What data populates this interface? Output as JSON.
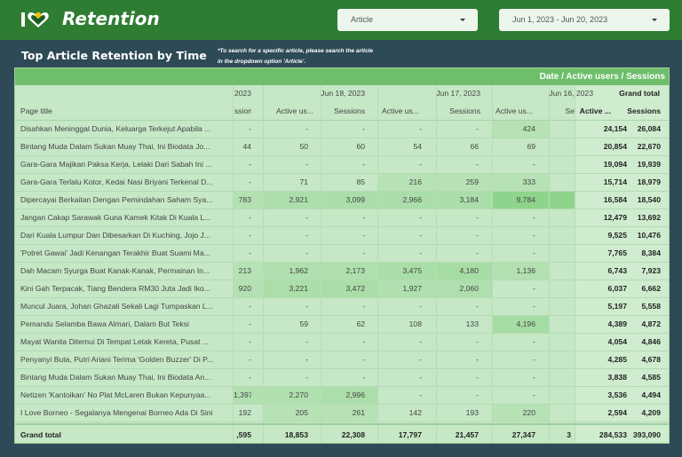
{
  "header": {
    "title": "Retention",
    "logo_icon": "i-love-borneo-logo-icon",
    "article_dropdown": "Article",
    "date_range": "Jun 1, 2023 - Jun 20, 2023"
  },
  "section": {
    "title": "Top Article Retention by Time",
    "note": "*To search for a specific article, please search the article in the dropdown option 'Article'."
  },
  "table": {
    "dimension_label": "Date / Active users / Sessions",
    "page_title_header": "Page title",
    "date_headers": [
      {
        "label": "2023"
      },
      {
        "label": "Jun 18, 2023"
      },
      {
        "label": "Jun 17, 2023"
      },
      {
        "label": "Jun 16, 2023"
      }
    ],
    "grand_total_header": "Grand total",
    "metric_headers": [
      "ssions",
      "Active us...",
      "Sessions",
      "Active us...",
      "Sessions",
      "Active us...",
      "Se"
    ],
    "grand_total_metric_headers": [
      "Active ...",
      "Sessions"
    ],
    "rows": [
      {
        "title": "Disahkan Meninggal Dunia, Keluarga Terkejut Apabila ...",
        "values": [
          "-",
          "-",
          "-",
          "-",
          "-",
          "424",
          ""
        ],
        "au": "24,154",
        "s": "26,084"
      },
      {
        "title": "Bintang Muda Dalam Sukan Muay Thai, Ini Biodata Jo...",
        "values": [
          "44",
          "50",
          "60",
          "54",
          "66",
          "69",
          ""
        ],
        "au": "20,854",
        "s": "22,670"
      },
      {
        "title": "Gara-Gara Majikan Paksa Kerja, Lelaki Dari Sabah Ini ...",
        "values": [
          "-",
          "-",
          "-",
          "-",
          "-",
          "-",
          ""
        ],
        "au": "19,094",
        "s": "19,939"
      },
      {
        "title": "Gara-Gara Terlalu Kotor, Kedai Nasi Briyani Terkenal D...",
        "values": [
          "-",
          "71",
          "85",
          "216",
          "259",
          "333",
          ""
        ],
        "au": "15,714",
        "s": "18,979"
      },
      {
        "title": "Dipercayai Berkaitan Dengan Pemindahan Saham Sya...",
        "values": [
          "783",
          "2,921",
          "3,099",
          "2,966",
          "3,184",
          "9,784",
          ""
        ],
        "au": "16,584",
        "s": "18,540"
      },
      {
        "title": "Jangan Cakap Sarawak Guna Kamek Kitak Di Kuala L...",
        "values": [
          "-",
          "-",
          "-",
          "-",
          "-",
          "-",
          ""
        ],
        "au": "12,479",
        "s": "13,692"
      },
      {
        "title": "Dari Kuala Lumpur Dan Dibesarkan Di Kuching, Jojo J...",
        "values": [
          "-",
          "-",
          "-",
          "-",
          "-",
          "-",
          ""
        ],
        "au": "9,525",
        "s": "10,476"
      },
      {
        "title": "'Potret Gawai' Jadi Kenangan Terakhir Buat Suami Ma...",
        "values": [
          "-",
          "-",
          "-",
          "-",
          "-",
          "-",
          ""
        ],
        "au": "7,765",
        "s": "8,384"
      },
      {
        "title": "Dah Macam Syurga Buat Kanak-Kanak, Permainan In...",
        "values": [
          "213",
          "1,962",
          "2,173",
          "3,475",
          "4,180",
          "1,136",
          ""
        ],
        "au": "6,743",
        "s": "7,923"
      },
      {
        "title": "Kini Gah Terpacak, Tiang Bendera RM30 Juta Jadi Iko...",
        "values": [
          "920",
          "3,221",
          "3,472",
          "1,927",
          "2,060",
          "-",
          ""
        ],
        "au": "6,037",
        "s": "6,662"
      },
      {
        "title": "Muncul Juara, Johan Ghazali Sekali Lagi Tumpaskan L...",
        "values": [
          "-",
          "-",
          "-",
          "-",
          "-",
          "-",
          ""
        ],
        "au": "5,197",
        "s": "5,558"
      },
      {
        "title": "Pemandu Selamba Bawa Almari, Dalam But Teksi",
        "values": [
          "-",
          "59",
          "62",
          "108",
          "133",
          "4,196",
          ""
        ],
        "au": "4,389",
        "s": "4,872"
      },
      {
        "title": "Mayat Wanita Ditemui Di Tempat Letak Kereta, Pusat ...",
        "values": [
          "-",
          "-",
          "-",
          "-",
          "-",
          "-",
          ""
        ],
        "au": "4,054",
        "s": "4,846"
      },
      {
        "title": "Penyanyi Buta, Putri Ariani Terima 'Golden Buzzer' Di P...",
        "values": [
          "-",
          "-",
          "-",
          "-",
          "-",
          "-",
          ""
        ],
        "au": "4,285",
        "s": "4,678"
      },
      {
        "title": "Bintang Muda Dalam Sukan Muay Thai, Ini Biodata An...",
        "values": [
          "-",
          "-",
          "-",
          "-",
          "-",
          "-",
          ""
        ],
        "au": "3,838",
        "s": "4,585"
      },
      {
        "title": "Netizen 'Kantoikan' No Plat McLaren Bukan Kepunyaa...",
        "values": [
          "1,397",
          "2,270",
          "2,996",
          "-",
          "-",
          "-",
          ""
        ],
        "au": "3,536",
        "s": "4,494"
      },
      {
        "title": "I Love Borneo - Segalanya Mengenai Borneo Ada Di Sini",
        "values": [
          "192",
          "205",
          "261",
          "142",
          "193",
          "220",
          ""
        ],
        "au": "2,594",
        "s": "4,209"
      }
    ],
    "totals": {
      "label": "Grand total",
      "values": [
        ",595",
        "18,853",
        "22,308",
        "17,797",
        "21,457",
        "27,347",
        "3"
      ],
      "au": "284,533",
      "s": "393,090"
    },
    "heat_color": "#8fd48c"
  }
}
